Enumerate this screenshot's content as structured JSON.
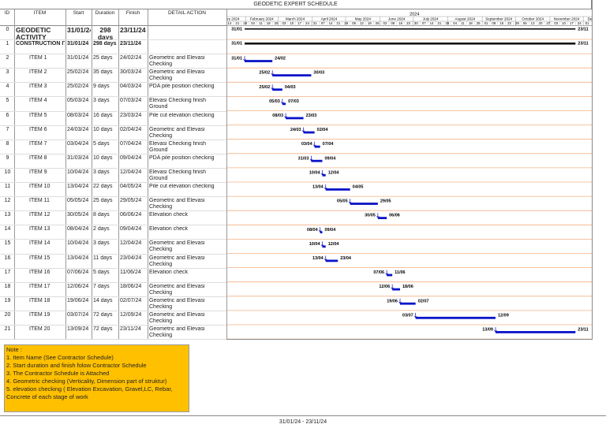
{
  "title": "GEODETIC EXPERT SCHEDULE",
  "columns": [
    "ID",
    "ITEM",
    "Start",
    "Duration",
    "Finish",
    "DETAIL ACTION"
  ],
  "timeline": {
    "year": "2024",
    "months": [
      "January 2024",
      "February 2024",
      "March 2024",
      "April 2024",
      "May 2024",
      "June 2024",
      "July 2024",
      "August 2024",
      "September 2024",
      "October 2024",
      "November 2024",
      "December 2024"
    ],
    "weeks": [
      "14",
      "21",
      "28",
      "04",
      "11",
      "18",
      "25",
      "03",
      "10",
      "17",
      "24",
      "31",
      "07",
      "14",
      "21",
      "28",
      "05",
      "12",
      "19",
      "26",
      "02",
      "09",
      "16",
      "23",
      "30",
      "07",
      "14",
      "21",
      "28",
      "04",
      "11",
      "18",
      "25",
      "01",
      "08",
      "15",
      "22",
      "29",
      "06",
      "13",
      "20",
      "27",
      "03",
      "10",
      "17",
      "24",
      "01"
    ],
    "task_color": "#0a14c8",
    "summary_color": "#000000",
    "row_line_color": "#f4b183"
  },
  "rows": [
    {
      "id": "0",
      "item": "GEODETIC ACTIVITY",
      "start": "31/01/24",
      "duration": "298 days",
      "finish": "23/11/24",
      "bar_labels": [
        "31/01",
        "23/11"
      ],
      "summary": true
    },
    {
      "id": "1",
      "item": "CONSTRUCTION ITEM",
      "start": "31/01/24",
      "duration": "298 days",
      "finish": "23/11/24",
      "bar_labels": [
        "31/01",
        "23/11"
      ],
      "summary": true
    },
    {
      "id": "2",
      "item": "ITEM 1",
      "start": "31/01/24",
      "duration": "25 days",
      "finish": "24/02/24",
      "detail": "Geometric and Elevasi Checking",
      "bar_labels": [
        "31/01",
        "24/02"
      ]
    },
    {
      "id": "3",
      "item": "ITEM 2",
      "start": "25/02/24",
      "duration": "35 days",
      "finish": "30/03/24",
      "detail": "Geometric and Elevasi Checking",
      "bar_labels": [
        "25/02",
        "30/03"
      ]
    },
    {
      "id": "4",
      "item": "ITEM 3",
      "start": "25/02/24",
      "duration": "9 days",
      "finish": "04/03/24",
      "detail": "PDA pile position checking",
      "bar_labels": [
        "25/02",
        "04/03"
      ]
    },
    {
      "id": "5",
      "item": "ITEM 4",
      "start": "05/03/24",
      "duration": "3 days",
      "finish": "07/03/24",
      "detail": "Elevasi Checking finish Ground",
      "bar_labels": [
        "05/03",
        "07/03"
      ]
    },
    {
      "id": "6",
      "item": "ITEM 5",
      "start": "08/03/24",
      "duration": "16 days",
      "finish": "23/03/24",
      "detail": "Pile cut elevation checking",
      "bar_labels": [
        "08/03",
        "23/03"
      ]
    },
    {
      "id": "7",
      "item": "ITEM 6",
      "start": "24/03/24",
      "duration": "10 days",
      "finish": "02/04/24",
      "detail": "Geometric and Elevasi Checking",
      "bar_labels": [
        "24/03",
        "02/04"
      ]
    },
    {
      "id": "8",
      "item": "ITEM 7",
      "start": "03/04/24",
      "duration": "5 days",
      "finish": "07/04/24",
      "detail": "Elevasi Checking finish Ground",
      "bar_labels": [
        "03/04",
        "07/04"
      ]
    },
    {
      "id": "9",
      "item": "ITEM 8",
      "start": "31/03/24",
      "duration": "10 days",
      "finish": "09/04/24",
      "detail": "PDA pile position checking",
      "bar_labels": [
        "31/03",
        "09/04"
      ]
    },
    {
      "id": "10",
      "item": "ITEM 9",
      "start": "10/04/24",
      "duration": "3 days",
      "finish": "12/04/24",
      "detail": "Elevasi Checking finish Ground",
      "bar_labels": [
        "10/04",
        "12/04"
      ]
    },
    {
      "id": "11",
      "item": "ITEM 10",
      "start": "13/04/24",
      "duration": "22 days",
      "finish": "04/05/24",
      "detail": "Pile cut elevation checking",
      "bar_labels": [
        "13/04",
        "04/05"
      ]
    },
    {
      "id": "12",
      "item": "ITEM 11",
      "start": "05/05/24",
      "duration": "25 days",
      "finish": "29/05/24",
      "detail": "Geometric and Elevasi Checking",
      "bar_labels": [
        "05/05",
        "29/05"
      ]
    },
    {
      "id": "13",
      "item": "ITEM 12",
      "start": "30/05/24",
      "duration": "8 days",
      "finish": "06/06/24",
      "detail": "Elevation check",
      "bar_labels": [
        "30/05",
        "06/06"
      ]
    },
    {
      "id": "14",
      "item": "ITEM 13",
      "start": "08/04/24",
      "duration": "2 days",
      "finish": "09/04/24",
      "detail": "Elevation check",
      "bar_labels": [
        "08/04",
        "09/04"
      ]
    },
    {
      "id": "15",
      "item": "ITEM 14",
      "start": "10/04/24",
      "duration": "3 days",
      "finish": "12/04/24",
      "detail": "Geometric and Elevasi Checking",
      "bar_labels": [
        "10/04",
        "12/04"
      ]
    },
    {
      "id": "16",
      "item": "ITEM 15",
      "start": "13/04/24",
      "duration": "11 days",
      "finish": "23/04/24",
      "detail": "Geometric and Elevasi Checking",
      "bar_labels": [
        "13/04",
        "23/04"
      ]
    },
    {
      "id": "17",
      "item": "ITEM 16",
      "start": "07/06/24",
      "duration": "5 days",
      "finish": "11/06/24",
      "detail": "Elevation check",
      "bar_labels": [
        "07/06",
        "11/06"
      ]
    },
    {
      "id": "18",
      "item": "ITEM 17",
      "start": "12/06/24",
      "duration": "7 days",
      "finish": "18/06/24",
      "detail": "Geometric and Elevasi Checking",
      "bar_labels": [
        "12/06",
        "18/06"
      ]
    },
    {
      "id": "19",
      "item": "ITEM 18",
      "start": "19/06/24",
      "duration": "14 days",
      "finish": "02/07/24",
      "detail": "Geometric and Elevasi Checking",
      "bar_labels": [
        "19/06",
        "02/07"
      ]
    },
    {
      "id": "20",
      "item": "ITEM 19",
      "start": "03/07/24",
      "duration": "72 days",
      "finish": "12/09/24",
      "detail": "Geometric and Elevasi Checking",
      "bar_labels": [
        "03/07",
        "12/09"
      ]
    },
    {
      "id": "21",
      "item": "ITEM 20",
      "start": "13/09/24",
      "duration": "72 days",
      "finish": "23/11/24",
      "detail": "Geometric and Elevasi Checking",
      "bar_labels": [
        "13/09",
        "23/11"
      ]
    }
  ],
  "note": {
    "title": "Note :",
    "lines": [
      "1. Item Name (See Contractor Schedule)",
      "2. Start duration and finish folow Contractor Schedule",
      "3. The Contractor Schedule is Attached",
      "4. Geometric checking (Verticality, Dimension part of struktur)",
      "5. elevation checking ( Elevation Excavation, Gravel,LC, Rebar, Concrete of each stage of work"
    ]
  },
  "footer": "31/01/24 - 23/11/24"
}
